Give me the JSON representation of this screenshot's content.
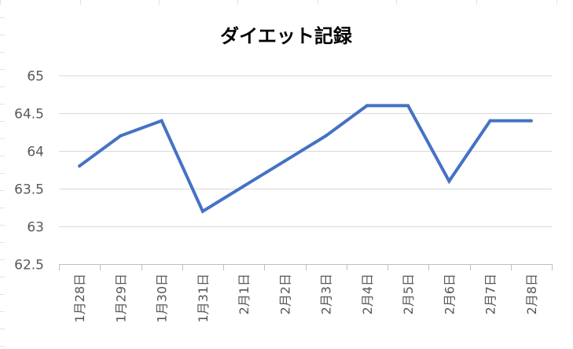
{
  "chart_data": {
    "type": "line",
    "title": "ダイエット記録",
    "categories": [
      "1月28日",
      "1月29日",
      "1月30日",
      "1月31日",
      "2月1日",
      "2月2日",
      "2月3日",
      "2月4日",
      "2月5日",
      "2月6日",
      "2月7日",
      "2月8日"
    ],
    "series": [
      {
        "values": [
          63.8,
          64.2,
          64.4,
          63.2,
          63.533,
          63.867,
          64.2,
          64.6,
          64.6,
          63.6,
          64.4,
          64.4
        ],
        "color": "#4472c4"
      }
    ],
    "ylim": [
      62.5,
      65
    ],
    "yticks": [
      62.5,
      63,
      63.5,
      64,
      64.5,
      65
    ],
    "ytick_labels": [
      "62.5",
      "63",
      "63.5",
      "64",
      "64.5",
      "65"
    ],
    "grid": true,
    "legend": "none"
  }
}
